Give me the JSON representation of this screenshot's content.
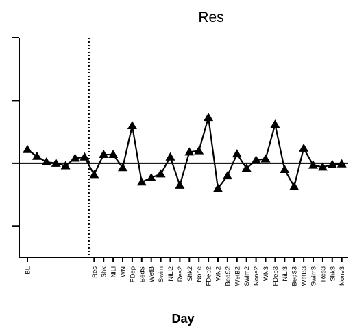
{
  "chart_data": {
    "type": "line",
    "title": "Res",
    "xlabel": "Day",
    "ylabel": "",
    "ylim": [
      -1.5,
      2
    ],
    "yticks": [
      -1,
      0,
      1,
      2
    ],
    "ytick_labels_shown": false,
    "zero_line": true,
    "divider_after": "BL",
    "marker": "triangle",
    "colors": {
      "line": "#000000",
      "marker": "#000000",
      "axis": "#000000"
    },
    "series": [
      {
        "values": [
          0.22,
          0.11,
          0.02,
          0.0,
          -0.04,
          0.08,
          0.1,
          -0.18,
          0.14,
          0.14,
          -0.07,
          0.6,
          -0.3,
          -0.23,
          -0.17,
          0.1,
          -0.35,
          0.18,
          0.2,
          0.73,
          -0.4,
          -0.2,
          0.15,
          -0.08,
          0.05,
          0.07,
          0.62,
          -0.1,
          -0.37,
          0.24,
          -0.03,
          -0.06,
          -0.02,
          -0.01
        ]
      }
    ],
    "categories": [
      "BL",
      "",
      "",
      "",
      "",
      "",
      "",
      "Res",
      "Shk",
      "NiLi",
      "WN",
      "FDep",
      "BedS",
      "WetB",
      "Swim",
      "NiLi2",
      "Res2",
      "Shk2",
      "None",
      "FDep2",
      "WN2",
      "BedS2",
      "WetB2",
      "Swim2",
      "None2",
      "WN3",
      "FDep3",
      "NiLi3",
      "BedS3",
      "WetB3",
      "Swim3",
      "Res3",
      "Shk3",
      "None3"
    ]
  }
}
